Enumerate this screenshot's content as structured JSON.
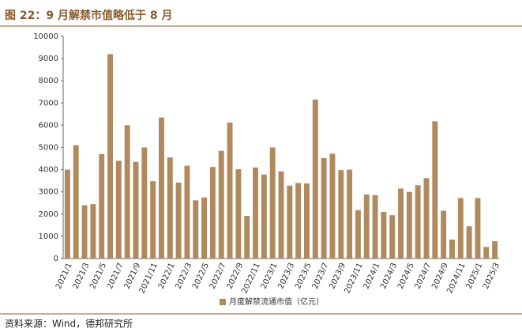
{
  "chart_data": {
    "type": "bar",
    "title": "图 22：9 月解禁市值略低于 8 月",
    "source": "资料来源：Wind，德邦研究所",
    "categories": [
      "2021/1",
      null,
      "2021/3",
      null,
      "2021/5",
      null,
      "2021/7",
      null,
      "2021/9",
      null,
      "2021/11",
      null,
      "2022/1",
      null,
      "2022/3",
      null,
      "2022/5",
      null,
      "2022/7",
      null,
      "2022/9",
      null,
      "2022/11",
      null,
      "2023/1",
      null,
      "2023/3",
      null,
      "2023/5",
      null,
      "2023/7",
      null,
      "2023/9",
      null,
      "2023/11",
      null,
      "2024/1",
      null,
      "2024/3",
      null,
      "2024/5",
      null,
      "2024/7",
      null,
      "2024/9",
      null,
      "2024/11",
      null,
      "2025/1",
      null,
      "2025/3"
    ],
    "series": [
      {
        "name": "月度解禁流通市值（亿元）",
        "color": "#b08a5e",
        "values": [
          4000,
          5100,
          2400,
          2450,
          4700,
          9200,
          4400,
          6000,
          4350,
          5000,
          3480,
          6350,
          4550,
          3420,
          4180,
          2620,
          2750,
          4120,
          4850,
          6120,
          4020,
          1920,
          4100,
          3780,
          5000,
          3920,
          3280,
          3400,
          3380,
          7150,
          4520,
          4720,
          3980,
          4000,
          2180,
          2880,
          2850,
          2100,
          1950,
          3150,
          3000,
          3300,
          3620,
          6180,
          2150,
          850,
          2720,
          1450,
          2720,
          520,
          780
        ]
      }
    ],
    "ylim": [
      0,
      10000
    ],
    "yticks": [
      0,
      1000,
      2000,
      3000,
      4000,
      5000,
      6000,
      7000,
      8000,
      9000,
      10000
    ],
    "legend": "bottom"
  }
}
